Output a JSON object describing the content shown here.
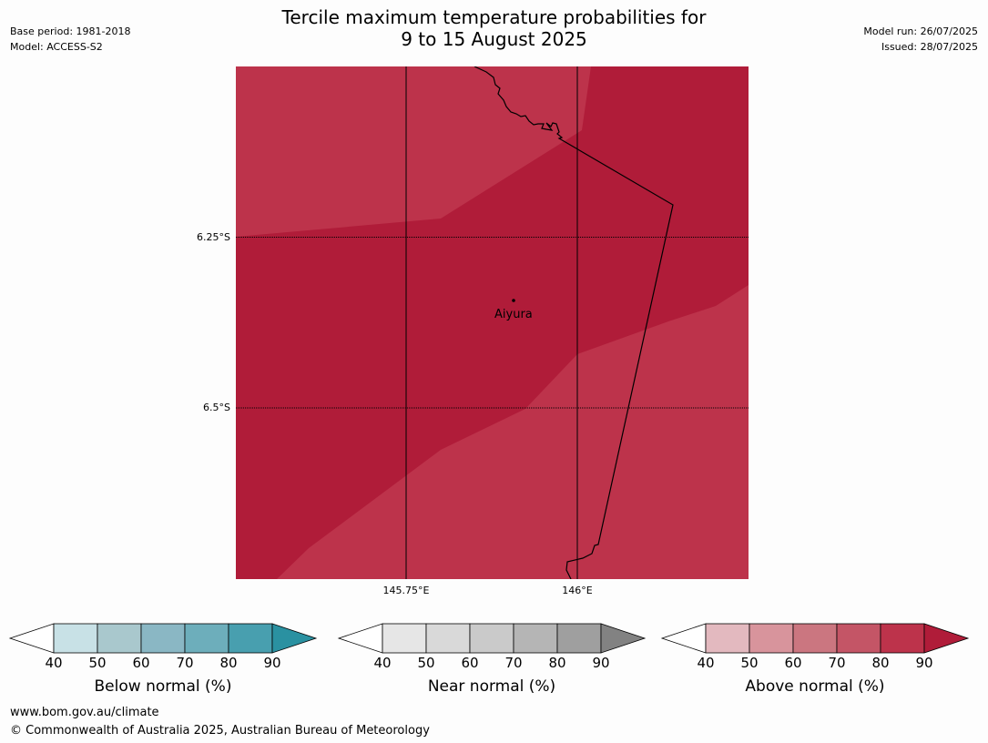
{
  "header": {
    "title_line1": "Tercile maximum temperature probabilities for",
    "title_line2": "9 to 15 August 2025",
    "base_period": "Base period: 1981-2018",
    "model": "Model: ACCESS-S2",
    "model_run": "Model run: 26/07/2025",
    "issued": "Issued: 28/07/2025"
  },
  "map": {
    "lat_labels": [
      "6.25°S",
      "6.5°S"
    ],
    "lon_labels": [
      "145.75°E",
      "146°E"
    ],
    "place": "Aiyura",
    "fill_colors": {
      "above_70_80": "#bd334b",
      "above_80_90": "#b01c39"
    }
  },
  "legends": [
    {
      "title": "Below normal (%)",
      "ticks": [
        "40",
        "50",
        "60",
        "70",
        "80",
        "90"
      ],
      "colors": [
        "#ffffff",
        "#c8e1e6",
        "#a9c8cd",
        "#8ab7c4",
        "#6daebb",
        "#489faf",
        "#2a91a1"
      ]
    },
    {
      "title": "Near normal (%)",
      "ticks": [
        "40",
        "50",
        "60",
        "70",
        "80",
        "90"
      ],
      "colors": [
        "#ffffff",
        "#e6e6e6",
        "#d9d9d9",
        "#cacaca",
        "#b5b5b5",
        "#9f9f9f",
        "#828282"
      ]
    },
    {
      "title": "Above normal (%)",
      "ticks": [
        "40",
        "50",
        "60",
        "70",
        "80",
        "90"
      ],
      "colors": [
        "#ffffff",
        "#e3b9bf",
        "#d8949c",
        "#cb7680",
        "#c45566",
        "#bd334b",
        "#b01c39"
      ]
    }
  ],
  "footer": {
    "url": "www.bom.gov.au/climate",
    "copyright": "© Commonwealth of Australia 2025, Australian Bureau of Meteorology"
  }
}
